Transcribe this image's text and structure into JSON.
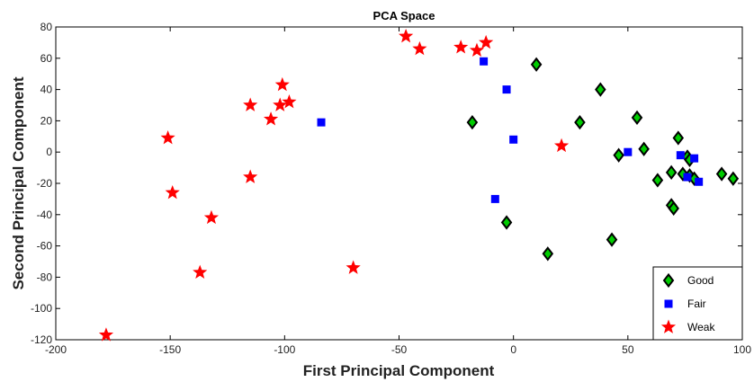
{
  "chart_data": {
    "type": "scatter",
    "title": "PCA Space",
    "xlabel": "First Principal Component",
    "ylabel": "Second Principal Component",
    "xlim": [
      -200,
      100
    ],
    "ylim": [
      -120,
      80
    ],
    "xticks": [
      -200,
      -150,
      -100,
      -50,
      0,
      50,
      100
    ],
    "yticks": [
      -120,
      -100,
      -80,
      -60,
      -40,
      -20,
      0,
      20,
      40,
      60,
      80
    ],
    "grid": false,
    "legend_position": "bottom-right",
    "series": [
      {
        "name": "Good",
        "marker": "diamond",
        "color": "#00cc00",
        "edge_color": "#000000",
        "points": [
          [
            -18,
            19
          ],
          [
            10,
            56
          ],
          [
            38,
            40
          ],
          [
            29,
            19
          ],
          [
            54,
            22
          ],
          [
            -3,
            -45
          ],
          [
            15,
            -65
          ],
          [
            43,
            -56
          ],
          [
            46,
            -2
          ],
          [
            57,
            2
          ],
          [
            63,
            -18
          ],
          [
            69,
            -13
          ],
          [
            69,
            -34
          ],
          [
            70,
            -36
          ],
          [
            72,
            9
          ],
          [
            74,
            -14
          ],
          [
            76,
            -3
          ],
          [
            77,
            -5
          ],
          [
            77,
            -15
          ],
          [
            79,
            -17
          ],
          [
            91,
            -14
          ],
          [
            96,
            -17
          ]
        ]
      },
      {
        "name": "Fair",
        "marker": "square",
        "color": "#0000ff",
        "points": [
          [
            -84,
            19
          ],
          [
            -13,
            58
          ],
          [
            -3,
            40
          ],
          [
            0,
            8
          ],
          [
            -8,
            -30
          ],
          [
            50,
            0
          ],
          [
            73,
            -2
          ],
          [
            76,
            -16
          ],
          [
            79,
            -4
          ],
          [
            81,
            -19
          ]
        ]
      },
      {
        "name": "Weak",
        "marker": "star",
        "color": "#ff0000",
        "points": [
          [
            -178,
            -117
          ],
          [
            -151,
            9
          ],
          [
            -149,
            -26
          ],
          [
            -137,
            -77
          ],
          [
            -132,
            -42
          ],
          [
            -115,
            30
          ],
          [
            -115,
            -16
          ],
          [
            -106,
            21
          ],
          [
            -102,
            30
          ],
          [
            -101,
            43
          ],
          [
            -98,
            32
          ],
          [
            -70,
            -74
          ],
          [
            -47,
            74
          ],
          [
            -41,
            66
          ],
          [
            -23,
            67
          ],
          [
            -16,
            65
          ],
          [
            -12,
            70
          ],
          [
            21,
            4
          ]
        ]
      }
    ]
  }
}
